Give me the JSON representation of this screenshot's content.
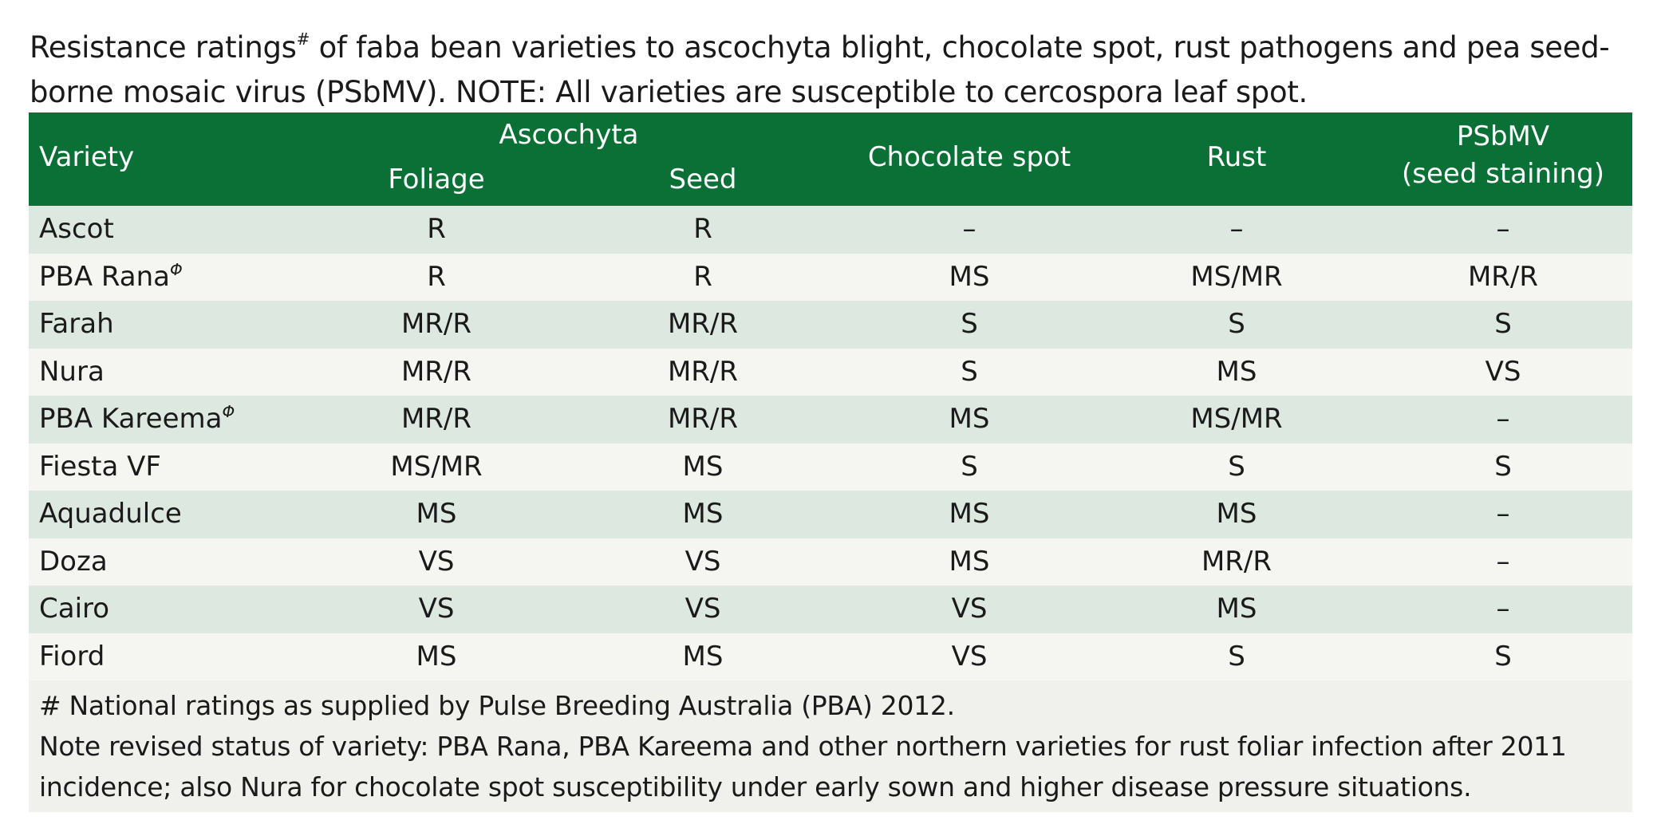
{
  "caption": {
    "text_before_sup": "Resistance ratings",
    "sup": "#",
    "line1_rest": " of faba bean varieties to ascochyta blight, chocolate spot, rust pathogens and pea seed-",
    "line2": "borne mosaic virus (PSbMV). NOTE: All varieties are susceptible to cercospora leaf spot."
  },
  "header": {
    "variety": "Variety",
    "ascochyta": "Ascochyta",
    "foliage": "Foliage",
    "seed": "Seed",
    "chocolate_spot": "Chocolate spot",
    "rust": "Rust",
    "psbmv_line1": "PSbMV",
    "psbmv_line2": "(seed staining)"
  },
  "pbr_symbol": "Φ",
  "rows": [
    {
      "variety": "Ascot",
      "pbr": false,
      "foliage": "R",
      "seed": "R",
      "chocolate": "–",
      "rust": "–",
      "psbmv": "–"
    },
    {
      "variety": "PBA Rana",
      "pbr": true,
      "foliage": "R",
      "seed": "R",
      "chocolate": "MS",
      "rust": "MS/MR",
      "psbmv": "MR/R"
    },
    {
      "variety": "Farah",
      "pbr": false,
      "foliage": "MR/R",
      "seed": "MR/R",
      "chocolate": "S",
      "rust": "S",
      "psbmv": "S"
    },
    {
      "variety": "Nura",
      "pbr": false,
      "foliage": "MR/R",
      "seed": "MR/R",
      "chocolate": "S",
      "rust": "MS",
      "psbmv": "VS"
    },
    {
      "variety": "PBA Kareema",
      "pbr": true,
      "foliage": "MR/R",
      "seed": "MR/R",
      "chocolate": "MS",
      "rust": "MS/MR",
      "psbmv": "–"
    },
    {
      "variety": "Fiesta VF",
      "pbr": false,
      "foliage": "MS/MR",
      "seed": "MS",
      "chocolate": "S",
      "rust": "S",
      "psbmv": "S"
    },
    {
      "variety": "Aquadulce",
      "pbr": false,
      "foliage": "MS",
      "seed": "MS",
      "chocolate": "MS",
      "rust": "MS",
      "psbmv": "–"
    },
    {
      "variety": "Doza",
      "pbr": false,
      "foliage": "VS",
      "seed": "VS",
      "chocolate": "MS",
      "rust": "MR/R",
      "psbmv": "–"
    },
    {
      "variety": "Cairo",
      "pbr": false,
      "foliage": "VS",
      "seed": "VS",
      "chocolate": "VS",
      "rust": "MS",
      "psbmv": "–"
    },
    {
      "variety": "Fiord",
      "pbr": false,
      "foliage": "MS",
      "seed": "MS",
      "chocolate": "VS",
      "rust": "S",
      "psbmv": "S"
    }
  ],
  "footer": {
    "line1": "# National ratings as supplied by Pulse Breeding Australia (PBA) 2012.",
    "line2": "Note revised status of variety: PBA Rana, PBA Kareema and other northern varieties for rust foliar infection after 2011",
    "line3": "incidence; also Nura for chocolate spot susceptibility under early sown and higher disease pressure situations."
  },
  "colors": {
    "header_bg": "#0a7035",
    "row_odd": "#dde8e1",
    "row_even": "#f5f5f1",
    "footer_bg": "#f0f0ec"
  }
}
